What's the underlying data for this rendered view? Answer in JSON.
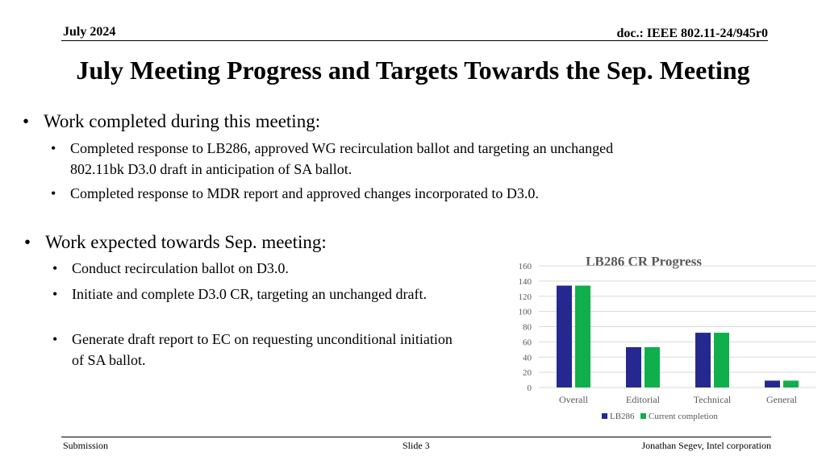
{
  "header": {
    "date": "July 2024",
    "doc_id": "doc.: IEEE 802.11-24/945r0"
  },
  "title": "July Meeting Progress and Targets Towards the Sep. Meeting",
  "sections": [
    {
      "heading": "Work completed during this meeting:",
      "items": [
        "Completed response to LB286, approved WG recirculation ballot and targeting an unchanged 802.11bk D3.0 draft in anticipation of SA ballot.",
        "Completed response to MDR report and approved changes incorporated to D3.0."
      ]
    },
    {
      "heading": "Work expected towards Sep. meeting:",
      "items": [
        "Conduct recirculation ballot on D3.0.",
        "Initiate and complete D3.0 CR, targeting an unchanged draft.",
        "Generate draft report to EC on requesting unconditional initiation of SA ballot."
      ]
    }
  ],
  "bullet_glyph": "•",
  "chart_data": {
    "type": "bar",
    "title": "LB286 CR Progress",
    "categories": [
      "Overall",
      "Editorial",
      "Technical",
      "General"
    ],
    "series": [
      {
        "name": "LB286",
        "values": [
          134,
          53,
          72,
          9
        ],
        "color": "#25298F"
      },
      {
        "name": "Current completion",
        "values": [
          134,
          53,
          72,
          9
        ],
        "color": "#0FB04C"
      }
    ],
    "ylim": [
      0,
      160
    ],
    "yticks": [
      0,
      20,
      40,
      60,
      80,
      100,
      120,
      140,
      160
    ],
    "grid": true,
    "legend": "bottom"
  },
  "footer": {
    "left": "Submission",
    "center": "Slide 3",
    "right": "Jonathan Segev, Intel corporation"
  }
}
